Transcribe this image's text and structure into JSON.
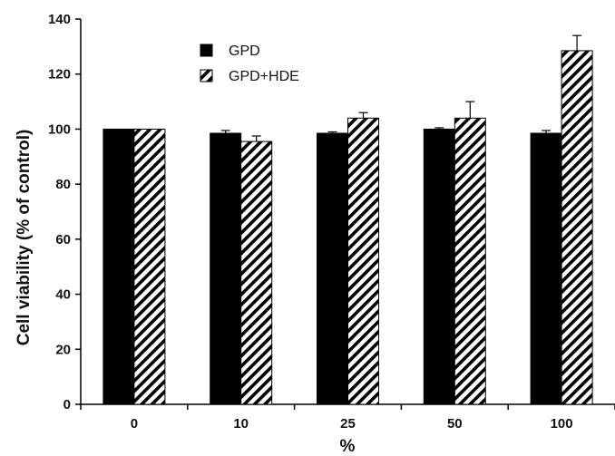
{
  "chart_data": {
    "type": "bar",
    "title": "",
    "xlabel": "%",
    "ylabel": "Cell viability (% of control)",
    "categories": [
      "0",
      "10",
      "25",
      "50",
      "100"
    ],
    "series": [
      {
        "name": "GPD",
        "values": [
          100,
          98.5,
          98.5,
          100,
          98.5
        ],
        "errors": [
          0,
          1,
          0.5,
          0.5,
          1
        ],
        "fill": "solid",
        "color": "#000000"
      },
      {
        "name": "GPD+HDE",
        "values": [
          100,
          95.5,
          104,
          104,
          128.5
        ],
        "errors": [
          0,
          2,
          2,
          6,
          5.5
        ],
        "fill": "hatch",
        "color": "#000000"
      }
    ],
    "ylim": [
      0,
      140
    ],
    "yticks": [
      "0",
      "20",
      "40",
      "60",
      "80",
      "100",
      "120",
      "140"
    ],
    "grid": false,
    "legend_position": "top-left"
  }
}
